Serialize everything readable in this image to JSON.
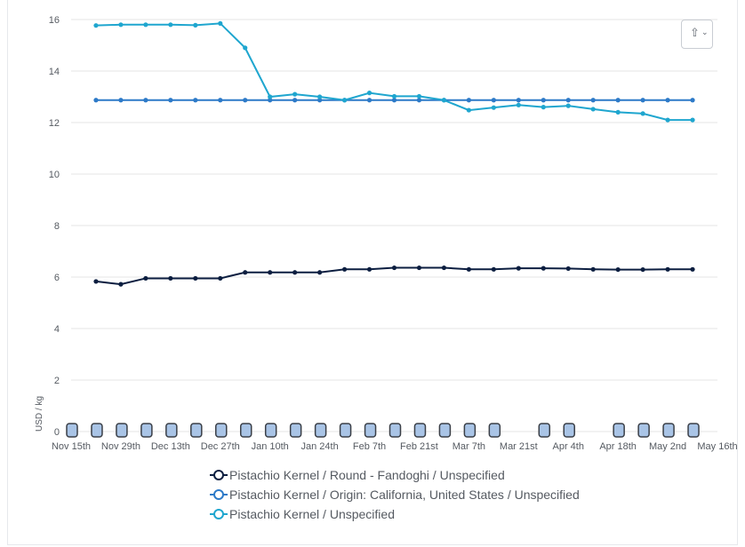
{
  "export_button": {
    "icon": "upload-icon",
    "chevron": "chevron-down-icon"
  },
  "chart_data": {
    "type": "line",
    "title": "",
    "xlabel": "",
    "ylabel": "USD / kg",
    "ylim": [
      0,
      16
    ],
    "yticks": [
      0,
      2,
      4,
      6,
      8,
      10,
      12,
      14,
      16
    ],
    "x_tick_labels": [
      "Nov 15th",
      "Nov 29th",
      "Dec 13th",
      "Dec 27th",
      "Jan 10th",
      "Jan 24th",
      "Feb 7th",
      "Feb 21st",
      "Mar 7th",
      "Mar 21st",
      "Apr 4th",
      "Apr 18th",
      "May 2nd",
      "May 16th"
    ],
    "x_range_days": [
      0,
      182
    ],
    "x_tick_days": [
      0,
      14,
      28,
      42,
      56,
      70,
      84,
      98,
      112,
      126,
      140,
      154,
      168,
      182
    ],
    "x_days": [
      7,
      14,
      21,
      28,
      35,
      42,
      49,
      56,
      63,
      70,
      77,
      84,
      91,
      98,
      105,
      112,
      119,
      126,
      133,
      140,
      147,
      154,
      161,
      168,
      175
    ],
    "series": [
      {
        "name": "Pistachio Kernel / Round - Fandoghi / Unspecified",
        "color": "#0c1e40",
        "values": [
          5.83,
          5.72,
          5.95,
          5.95,
          5.95,
          5.95,
          6.18,
          6.18,
          6.18,
          6.18,
          6.3,
          6.3,
          6.36,
          6.36,
          6.36,
          6.3,
          6.3,
          6.34,
          6.34,
          6.33,
          6.3,
          6.29,
          6.29,
          6.3,
          6.3
        ]
      },
      {
        "name": "Pistachio Kernel / Origin: California, United States / Unspecified",
        "color": "#2d7ac8",
        "values": [
          12.87,
          12.87,
          12.87,
          12.87,
          12.87,
          12.87,
          12.87,
          12.87,
          12.87,
          12.87,
          12.87,
          12.87,
          12.87,
          12.87,
          12.87,
          12.87,
          12.87,
          12.87,
          12.87,
          12.87,
          12.87,
          12.87,
          12.87,
          12.87,
          12.87
        ]
      },
      {
        "name": "Pistachio Kernel / Unspecified",
        "color": "#1fa6cf",
        "values": [
          15.77,
          15.8,
          15.8,
          15.8,
          15.78,
          15.85,
          14.9,
          13.0,
          13.1,
          13.0,
          12.87,
          13.15,
          13.02,
          13.02,
          12.87,
          12.48,
          12.58,
          12.68,
          12.6,
          12.65,
          12.52,
          12.4,
          12.35,
          12.1,
          12.1
        ]
      }
    ],
    "navigator_marker_days": [
      0,
      7,
      14,
      21,
      28,
      35,
      42,
      49,
      56,
      63,
      70,
      77,
      84,
      91,
      98,
      105,
      112,
      119,
      133,
      140,
      154,
      161,
      168,
      175
    ],
    "navigator_fill": "#a9c4e6",
    "navigator_stroke": "#3a3f47",
    "grid": true,
    "legend": "bottom-center"
  }
}
